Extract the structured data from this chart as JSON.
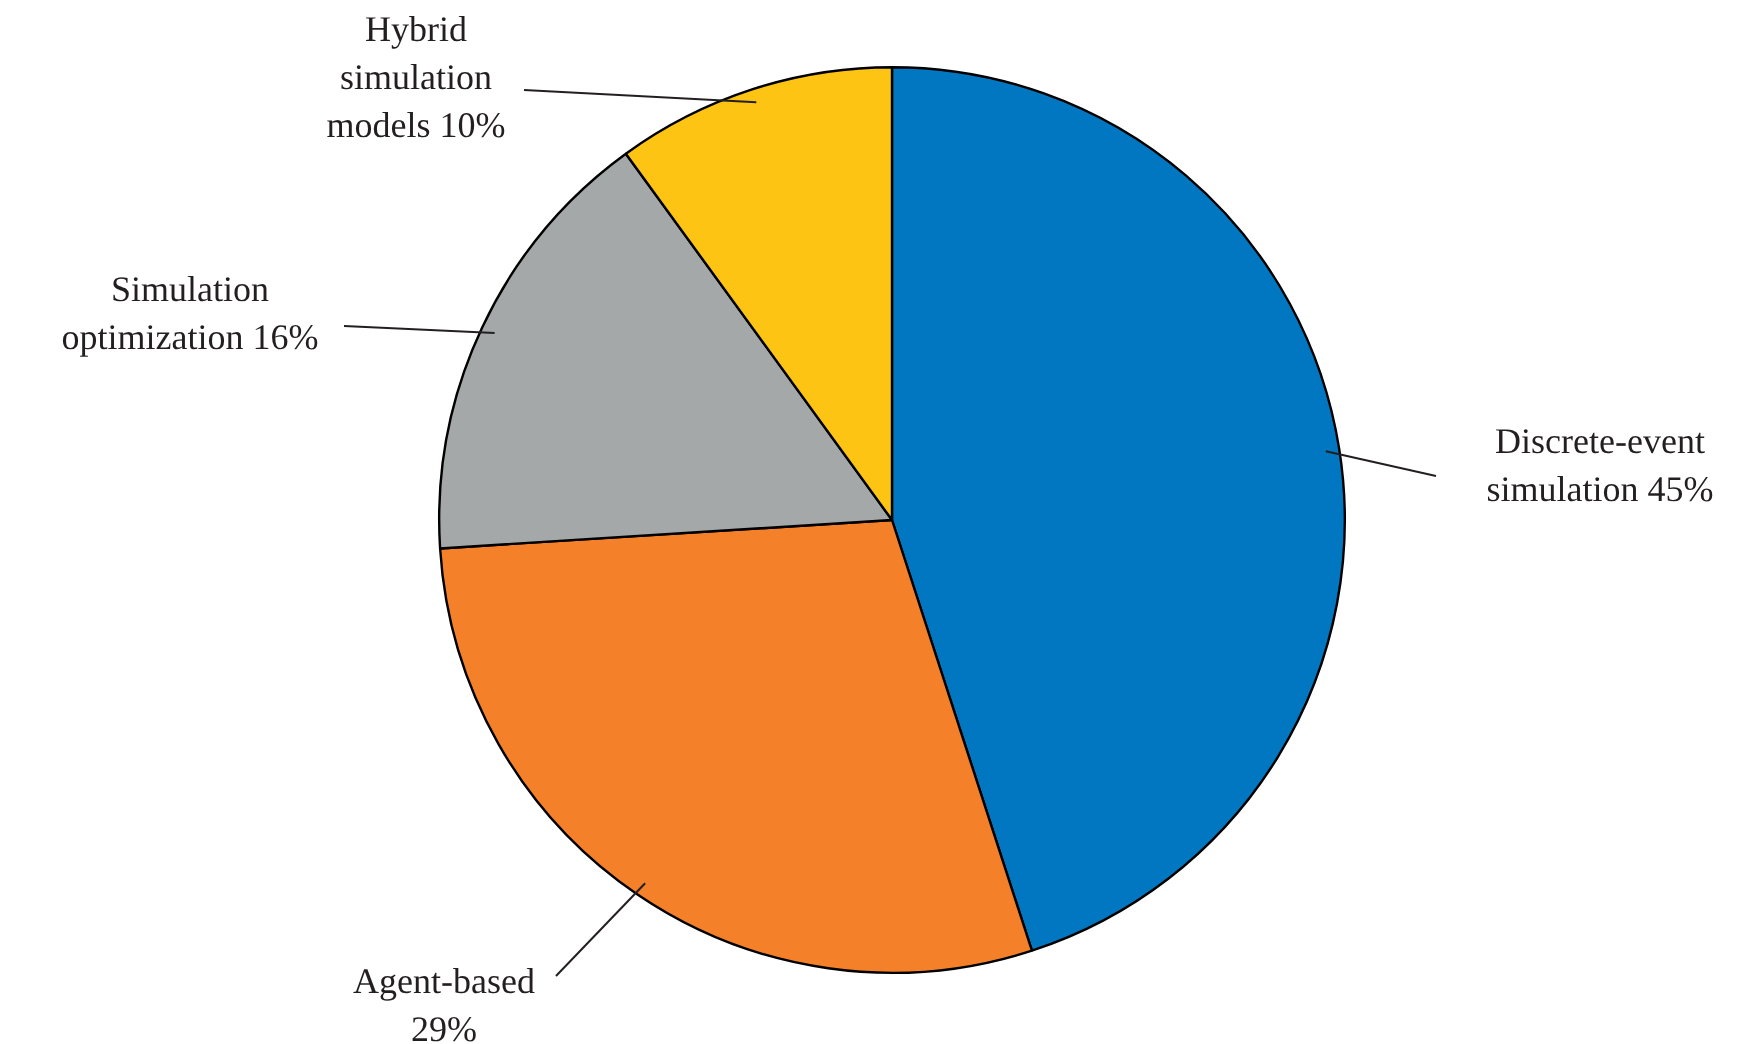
{
  "chart_data": {
    "type": "pie",
    "categories": [
      "Discrete-event simulation",
      "Agent-based",
      "Simulation optimization",
      "Hybrid simulation models"
    ],
    "values": [
      45,
      29,
      16,
      10
    ],
    "colors": [
      "#0077c0",
      "#f4802a",
      "#a5a8a8",
      "#fec413"
    ],
    "value_labels": [
      "45%",
      "29%",
      "16%",
      "10%"
    ],
    "legend": false
  }
}
